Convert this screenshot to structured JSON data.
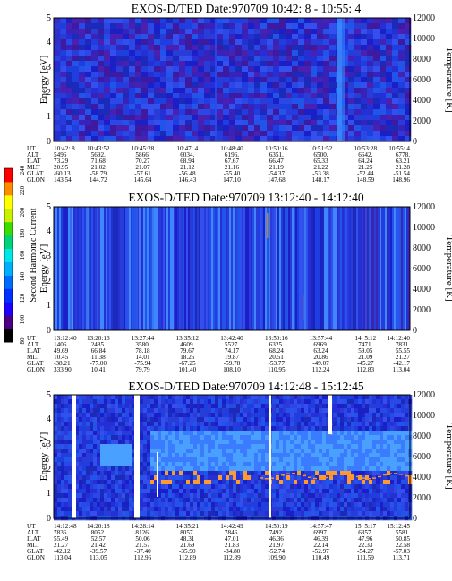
{
  "colorbar": {
    "label": "Second Harmonic Current",
    "ticks": [
      "80",
      "100",
      "120",
      "140",
      "160",
      "180",
      "200",
      "220",
      "240"
    ],
    "colors": [
      "#000000",
      "#4b0082",
      "#1e00ff",
      "#0030ff",
      "#006cff",
      "#00b0ff",
      "#00e5e5",
      "#00d27a",
      "#3cdc00",
      "#c8f000",
      "#ffff00",
      "#ff8c00",
      "#ff0000"
    ]
  },
  "row_labels": [
    "UT",
    "ALT",
    "ILAT",
    "MLT",
    "GLAT",
    "GLON"
  ],
  "chart_data": [
    {
      "type": "heatmap",
      "title": "EXOS-D/TED  Date:970709  10:42: 8 - 10:55: 4",
      "ylabel": "Energy [eV]",
      "y2label": "Temperature [K]",
      "ylim": [
        0,
        5
      ],
      "y2lim": [
        0,
        12000
      ],
      "yticks": [
        "0",
        "1",
        "2",
        "3",
        "4",
        "5"
      ],
      "y2ticks": [
        "0",
        "2000",
        "4000",
        "6000",
        "8000",
        "10000",
        "12000"
      ],
      "columns": [
        [
          "10:42: 8",
          "5496",
          "73.29",
          "20.95",
          "-60.13",
          "143.54"
        ],
        [
          "10:43:52",
          "5692.",
          "71.68",
          "21.02",
          "-58.79",
          "144.72"
        ],
        [
          "10:45:28",
          "5866.",
          "70.27",
          "21.07",
          "-57.61",
          "145.64"
        ],
        [
          "10:47: 4",
          "6034.",
          "68.94",
          "21.12",
          "-56.48",
          "146.43"
        ],
        [
          "10:48:40",
          "6196.",
          "67.67",
          "21.16",
          "-55.40",
          "147.10"
        ],
        [
          "10:50:16",
          "6351.",
          "66.47",
          "21.19",
          "-54.37",
          "147.68"
        ],
        [
          "10:51:52",
          "6500.",
          "65.33",
          "21.22",
          "-53.38",
          "148.17"
        ],
        [
          "10:53:28",
          "6642.",
          "64.24",
          "21.25",
          "-52.44",
          "148.59"
        ],
        [
          "10:55: 4",
          "6778.",
          "63.21",
          "21.28",
          "-51.54",
          "148.96"
        ]
      ]
    },
    {
      "type": "heatmap",
      "title": "EXOS-D/TED  Date:970709  13:12:40 - 14:12:40",
      "ylabel": "Energy [eV]",
      "y2label": "Temperature [K]",
      "ylim": [
        0,
        5
      ],
      "y2lim": [
        0,
        12000
      ],
      "yticks": [
        "0",
        "1",
        "2",
        "3",
        "4",
        "5"
      ],
      "y2ticks": [
        "0",
        "2000",
        "4000",
        "6000",
        "8000",
        "10000",
        "12000"
      ],
      "columns": [
        [
          "13:12:40",
          "1406.",
          "49.69",
          "10.45",
          "-38.21",
          "333.90"
        ],
        [
          "13:20:16",
          "2485.",
          "66.84",
          "11.38",
          "-77.00",
          "10.41"
        ],
        [
          "13:27:44",
          "3580.",
          "78.18",
          "14.01",
          "-75.94",
          "79.79"
        ],
        [
          "13:35:12",
          "4609.",
          "79.67",
          "18.25",
          "-67.25",
          "101.40"
        ],
        [
          "13:42:40",
          "5527.",
          "74.17",
          "19.87",
          "-59.78",
          "108.10"
        ],
        [
          "13:50:16",
          "6325.",
          "68.24",
          "20.51",
          "-53.77",
          "110.95"
        ],
        [
          "13:57:44",
          "6969.",
          "63.24",
          "20.86",
          "-49.07",
          "112.24"
        ],
        [
          "14: 5:12",
          "7471.",
          "59.05",
          "21.09",
          "-45.27",
          "112.83"
        ],
        [
          "14:12:40",
          "7831.",
          "55.55",
          "21.27",
          "-42.17",
          "113.04"
        ]
      ]
    },
    {
      "type": "heatmap",
      "title": "EXOS-D/TED  Date:970709  14:12:48 - 15:12:45",
      "ylabel": "Energy [eV]",
      "y2label": "Temperature [K]",
      "ylim": [
        0,
        5
      ],
      "y2lim": [
        0,
        12000
      ],
      "yticks": [
        "0",
        "1",
        "2",
        "3",
        "4",
        "5"
      ],
      "y2ticks": [
        "0",
        "2000",
        "4000",
        "6000",
        "8000",
        "10000",
        "12000"
      ],
      "columns": [
        [
          "14:12:48",
          "7836.",
          "55.49",
          "21.27",
          "-42.12",
          "113.04"
        ],
        [
          "14:20:18",
          "8052.",
          "52.57",
          "21.42",
          "-39.57",
          "113.05"
        ],
        [
          "14:28:14",
          "8126.",
          "50.06",
          "21.57",
          "-37.40",
          "112.96"
        ],
        [
          "14:35:21",
          "8057.",
          "48.31",
          "21.69",
          "-35.90",
          "112.89"
        ],
        [
          "14:42:49",
          "7846.",
          "47.01",
          "21.83",
          "-34.80",
          "112.89"
        ],
        [
          "14:50:19",
          "7492.",
          "46.36",
          "21.97",
          "-52.74",
          "109.90"
        ],
        [
          "14:57:47",
          "6997.",
          "46.39",
          "22.14",
          "-52.97",
          "110.49"
        ],
        [
          "15: 5:17",
          "6357.",
          "47.96",
          "22.33",
          "-54.27",
          "111.59"
        ],
        [
          "15:12:45",
          "5581.",
          "50.85",
          "22.58",
          "-57.03",
          "113.71"
        ]
      ]
    }
  ]
}
